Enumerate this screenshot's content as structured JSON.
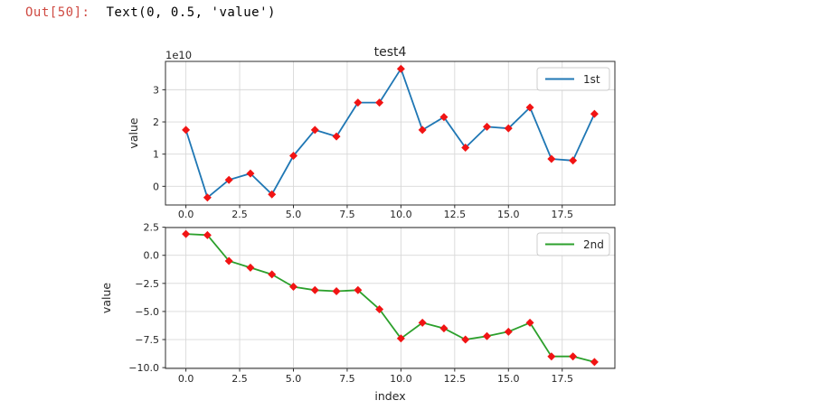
{
  "output_prompt": {
    "label": "Out[50]:",
    "text": "Text(0, 0.5, 'value')"
  },
  "colors": {
    "prompt_red": "#cf4a42",
    "axis_text": "#262626",
    "grid": "#d8d8d8",
    "spine": "#2c2c2c",
    "marker_red": "#f11414",
    "legend_border": "#cccccc",
    "line_1st": "#1f77b4",
    "line_2nd": "#2ca02c"
  },
  "chart_data": [
    {
      "type": "line",
      "title": "test4",
      "xlabel": "",
      "ylabel": "value",
      "offset_text": "1e10",
      "value_unit": "1e10",
      "grid": true,
      "legend": {
        "label": "1st",
        "position": "upper right"
      },
      "line_color": "#1f77b4",
      "marker": "red-diamond",
      "x": [
        0,
        1,
        2,
        3,
        4,
        5,
        6,
        7,
        8,
        9,
        10,
        11,
        12,
        13,
        14,
        15,
        16,
        17,
        18,
        19
      ],
      "values": [
        1.75,
        -0.35,
        0.2,
        0.4,
        -0.25,
        0.95,
        1.75,
        1.55,
        2.6,
        2.6,
        3.65,
        1.75,
        2.15,
        1.2,
        1.85,
        1.8,
        2.45,
        0.85,
        0.8,
        2.25
      ],
      "xlim": [
        -0.95,
        19.95
      ],
      "ylim": [
        -0.58,
        3.88
      ],
      "xticks": [
        0,
        2.5,
        5,
        7.5,
        10,
        12.5,
        15,
        17.5
      ],
      "xtick_labels": [
        "0.0",
        "2.5",
        "5.0",
        "7.5",
        "10.0",
        "12.5",
        "15.0",
        "17.5"
      ],
      "yticks": [
        0,
        1,
        2,
        3
      ],
      "ytick_labels": [
        "0",
        "1",
        "2",
        "3"
      ]
    },
    {
      "type": "line",
      "title": "",
      "xlabel": "index",
      "ylabel": "value",
      "offset_text": "",
      "value_unit": "1",
      "grid": true,
      "legend": {
        "label": "2nd",
        "position": "upper right"
      },
      "line_color": "#2ca02c",
      "marker": "red-diamond",
      "x": [
        0,
        1,
        2,
        3,
        4,
        5,
        6,
        7,
        8,
        9,
        10,
        11,
        12,
        13,
        14,
        15,
        16,
        17,
        18,
        19
      ],
      "values": [
        1.9,
        1.8,
        -0.5,
        -1.1,
        -1.7,
        -2.8,
        -3.1,
        -3.2,
        -3.1,
        -4.8,
        -7.4,
        -6.0,
        -6.5,
        -7.5,
        -7.2,
        -6.8,
        -6.0,
        -9.0,
        -9.0,
        -9.5
      ],
      "xlim": [
        -0.95,
        19.95
      ],
      "ylim": [
        -10.07,
        2.47
      ],
      "xticks": [
        0,
        2.5,
        5,
        7.5,
        10,
        12.5,
        15,
        17.5
      ],
      "xtick_labels": [
        "0.0",
        "2.5",
        "5.0",
        "7.5",
        "10.0",
        "12.5",
        "15.0",
        "17.5"
      ],
      "yticks": [
        2.5,
        0,
        -2.5,
        -5,
        -7.5,
        -10
      ],
      "ytick_labels": [
        "2.5",
        "0.0",
        "−2.5",
        "−5.0",
        "−7.5",
        "−10.0"
      ]
    }
  ]
}
